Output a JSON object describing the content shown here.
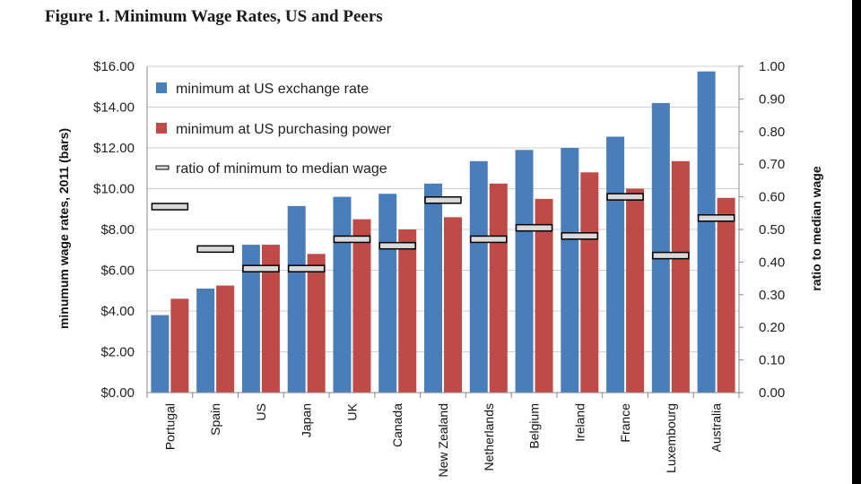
{
  "figure_title": "Figure 1. Minimum Wage Rates, US and Peers",
  "colors": {
    "series_exchange": "#4a7ebb",
    "series_ppp": "#be4b48",
    "ratio_fill": "#d9d9d9",
    "ratio_stroke": "#000000",
    "gridline": "#cfcfcf"
  },
  "chart_data": {
    "type": "bar",
    "title": "Figure 1. Minimum Wage Rates, US and Peers",
    "categories": [
      "Portugal",
      "Spain",
      "US",
      "Japan",
      "UK",
      "Canada",
      "New Zealand",
      "Netherlands",
      "Belgium",
      "Ireland",
      "France",
      "Luxembourg",
      "Australia"
    ],
    "series": [
      {
        "name": "minimum at US exchange rate",
        "axis": "left",
        "kind": "bar",
        "values": [
          3.8,
          5.1,
          7.25,
          9.15,
          9.6,
          9.75,
          10.25,
          11.35,
          11.9,
          12.0,
          12.55,
          14.2,
          15.75
        ]
      },
      {
        "name": "minimum at US purchasing power",
        "axis": "left",
        "kind": "bar",
        "values": [
          4.6,
          5.25,
          7.25,
          6.8,
          8.5,
          8.0,
          8.6,
          10.25,
          9.5,
          10.8,
          10.0,
          11.35,
          9.55
        ]
      },
      {
        "name": "ratio of minimum to median wage",
        "axis": "right",
        "kind": "marker",
        "values": [
          0.57,
          0.44,
          0.38,
          0.38,
          0.47,
          0.45,
          0.59,
          0.47,
          0.505,
          0.48,
          0.6,
          0.42,
          0.535
        ]
      }
    ],
    "ylabel": "minumum wage rates, 2011 (bars)",
    "ylabel_right": "ratio to median wage",
    "ylim": [
      0,
      16
    ],
    "ylim_right": [
      0,
      1
    ],
    "yticks": [
      "$0.00",
      "$2.00",
      "$4.00",
      "$6.00",
      "$8.00",
      "$10.00",
      "$12.00",
      "$14.00",
      "$16.00"
    ],
    "yticks_right": [
      "0.00",
      "0.10",
      "0.20",
      "0.30",
      "0.40",
      "0.50",
      "0.60",
      "0.70",
      "0.80",
      "0.90",
      "1.00"
    ],
    "grid": true,
    "legend_position": "top-left"
  }
}
